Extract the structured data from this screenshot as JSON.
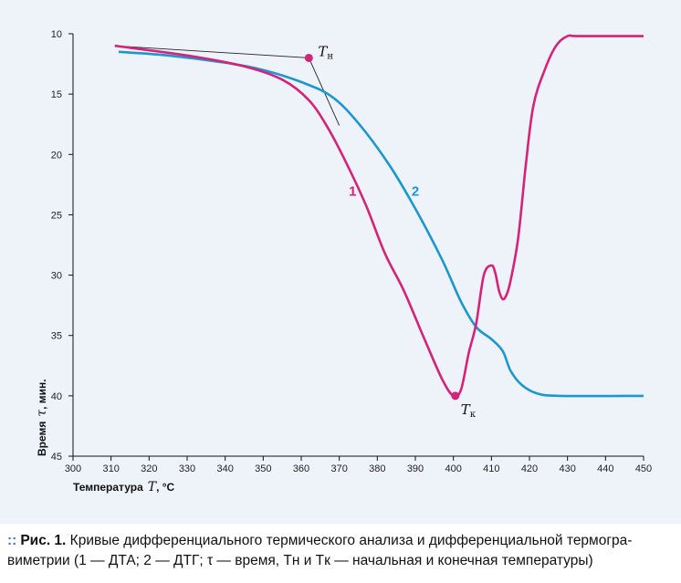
{
  "chart_data": {
    "type": "line",
    "xlabel_prefix": "Температура",
    "xlabel_var": "T",
    "xlabel_unit": ", °С",
    "ylabel_prefix": "Время",
    "ylabel_var": "τ",
    "ylabel_unit": ", мин.",
    "xlim": [
      300,
      450
    ],
    "ylim": [
      10,
      45
    ],
    "y_inverted": true,
    "x_ticks": [
      300,
      310,
      320,
      330,
      340,
      350,
      360,
      370,
      380,
      390,
      400,
      410,
      420,
      430,
      440,
      450
    ],
    "y_ticks": [
      10,
      15,
      20,
      25,
      30,
      35,
      40,
      45
    ],
    "grid": false,
    "series": [
      {
        "name": "1",
        "color": "#d4237a",
        "points": [
          [
            311,
            11
          ],
          [
            330,
            11.8
          ],
          [
            345,
            12.7
          ],
          [
            355,
            13.8
          ],
          [
            362,
            15.5
          ],
          [
            367,
            17.8
          ],
          [
            372,
            20.8
          ],
          [
            377,
            24.2
          ],
          [
            382,
            28.2
          ],
          [
            387,
            31.3
          ],
          [
            392,
            35
          ],
          [
            397,
            38.6
          ],
          [
            400,
            40
          ],
          [
            402,
            39.5
          ],
          [
            404,
            36.5
          ],
          [
            406,
            34
          ],
          [
            408,
            30
          ],
          [
            410,
            29.2
          ],
          [
            411,
            29.8
          ],
          [
            412,
            31.3
          ],
          [
            413,
            32
          ],
          [
            414,
            31.6
          ],
          [
            415,
            30.5
          ],
          [
            417,
            27
          ],
          [
            419,
            21
          ],
          [
            421,
            16
          ],
          [
            424,
            13
          ],
          [
            427,
            11
          ],
          [
            430,
            10.2
          ],
          [
            433,
            10.2
          ],
          [
            450,
            10.2
          ]
        ]
      },
      {
        "name": "2",
        "color": "#1c97cf",
        "points": [
          [
            312,
            11.5
          ],
          [
            325,
            11.8
          ],
          [
            340,
            12.4
          ],
          [
            350,
            13
          ],
          [
            360,
            14
          ],
          [
            368,
            15.2
          ],
          [
            375,
            17.4
          ],
          [
            383,
            20.8
          ],
          [
            390,
            24.5
          ],
          [
            397,
            28.7
          ],
          [
            402,
            32.2
          ],
          [
            406,
            34.3
          ],
          [
            410,
            35.3
          ],
          [
            413,
            36.3
          ],
          [
            415,
            37.9
          ],
          [
            418,
            39.1
          ],
          [
            422,
            39.8
          ],
          [
            428,
            40
          ],
          [
            450,
            40
          ]
        ]
      }
    ],
    "tangent_color": "#222222",
    "annotations": [
      {
        "label": "T",
        "sub": "н",
        "x": 362,
        "y": 12
      },
      {
        "label": "T",
        "sub": "к",
        "x": 400.5,
        "y": 40
      }
    ]
  },
  "caption": {
    "bold_prefix": "Рис. 1.",
    "line1": " Кривые дифференциального термического анализа и дифференциальной термогра-",
    "line2": "виметрии (1 — ДТА; 2 — ДТГ; τ — время, Tн и Tк — начальная и конечная температуры)"
  }
}
